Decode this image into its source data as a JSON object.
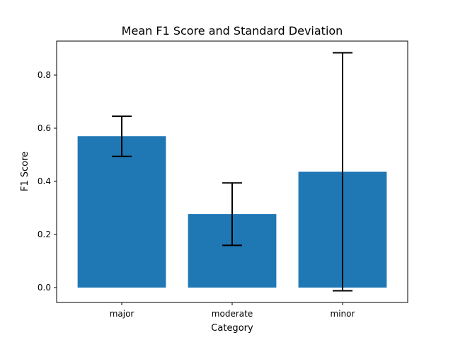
{
  "chart_data": {
    "type": "bar",
    "title": "Mean F1 Score and Standard Deviation",
    "xlabel": "Category",
    "ylabel": "F1 Score",
    "categories": [
      "major",
      "moderate",
      "minor"
    ],
    "values": [
      0.57,
      0.277,
      0.436
    ],
    "error_bars": [
      {
        "low": 0.494,
        "high": 0.645
      },
      {
        "low": 0.159,
        "high": 0.394
      },
      {
        "low": -0.012,
        "high": 0.884
      }
    ],
    "ylim": [
      -0.056,
      0.928
    ],
    "yticks": [
      "0.0",
      "0.2",
      "0.4",
      "0.6",
      "0.8"
    ],
    "bar_color": "#1f77b4",
    "errorbar_color": "#000000",
    "grid": false,
    "legend": false
  }
}
